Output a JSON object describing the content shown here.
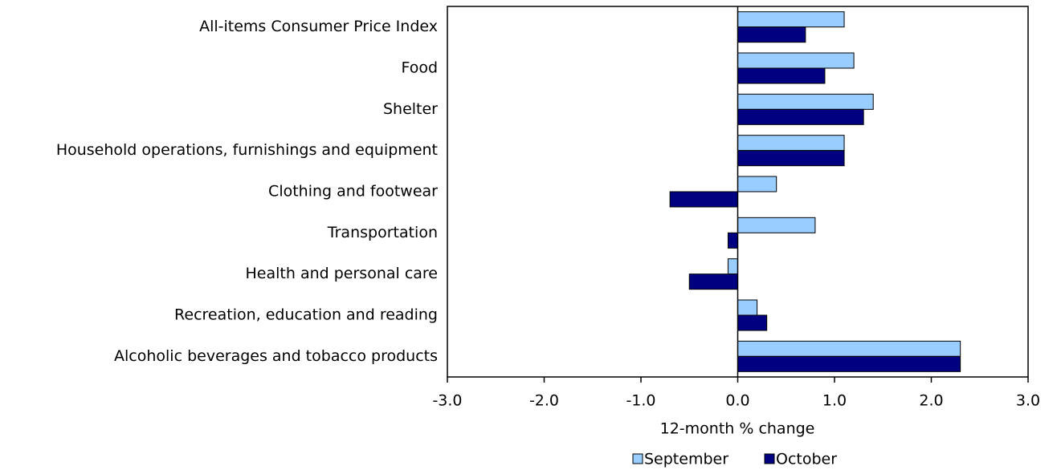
{
  "chart_data": {
    "type": "hbar",
    "categories": [
      "All-items Consumer Price Index",
      "Food",
      "Shelter",
      "Household operations, furnishings and equipment",
      "Clothing and footwear",
      "Transportation",
      "Health and personal care",
      "Recreation, education and reading",
      "Alcoholic beverages and tobacco products"
    ],
    "series": [
      {
        "name": "September",
        "color": "#99ccff",
        "values": [
          1.1,
          1.2,
          1.4,
          1.1,
          0.4,
          0.8,
          -0.1,
          0.2,
          2.3
        ]
      },
      {
        "name": "October",
        "color": "#000080",
        "values": [
          0.7,
          0.9,
          1.3,
          1.1,
          -0.7,
          -0.1,
          -0.5,
          0.3,
          2.3
        ]
      }
    ],
    "x_label": "12-month % change",
    "xlim": [
      -3,
      3
    ],
    "xticks": [
      {
        "value": -3,
        "label": "-3.0"
      },
      {
        "value": -2,
        "label": "-2.0"
      },
      {
        "value": -1,
        "label": "-1.0"
      },
      {
        "value": 0,
        "label": "0.0"
      },
      {
        "value": 1,
        "label": "1.0"
      },
      {
        "value": 2,
        "label": "2.0"
      },
      {
        "value": 3,
        "label": "3.0"
      }
    ],
    "legend": "bottom"
  }
}
